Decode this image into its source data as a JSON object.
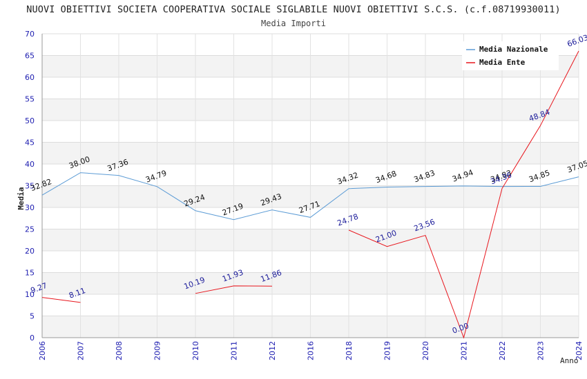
{
  "chart_data": {
    "type": "line",
    "title": "NUOVI OBIETTIVI SOCIETA COOPERATIVA SOCIALE SIGLABILE NUOVI OBIETTIVI S.C.S. (c.f.08719930011)",
    "subtitle": "Media Importi",
    "xlabel": "Anno",
    "ylabel": "Media",
    "ylim": [
      0,
      70
    ],
    "yticks": [
      0,
      5,
      10,
      15,
      20,
      25,
      30,
      35,
      40,
      45,
      50,
      55,
      60,
      65,
      70
    ],
    "categories": [
      "2006",
      "2007",
      "2008",
      "2009",
      "2010",
      "2011",
      "2012",
      "2016",
      "2018",
      "2019",
      "2020",
      "2021",
      "2022",
      "2023",
      "2024"
    ],
    "series": [
      {
        "name": "Media Nazionale",
        "color": "#5b9bd5",
        "values": [
          32.82,
          38.0,
          37.36,
          34.79,
          29.24,
          27.19,
          29.43,
          27.71,
          34.32,
          34.68,
          34.83,
          34.94,
          34.83,
          34.85,
          37.05
        ],
        "labels": [
          "32.82",
          "38.00",
          "37.36",
          "34.79",
          "29.24",
          "27.19",
          "29.43",
          "27.71",
          "34.32",
          "34.68",
          "34.83",
          "34.94",
          "34.83",
          "34.85",
          "37.05"
        ]
      },
      {
        "name": "Media Ente",
        "color": "#e8141b",
        "values": [
          9.27,
          8.11,
          null,
          null,
          10.19,
          11.93,
          11.86,
          null,
          24.78,
          21.0,
          23.56,
          0.0,
          34.36,
          48.84,
          66.03
        ],
        "labels": [
          "9.27",
          "8.11",
          "",
          "",
          "10.19",
          "11.93",
          "11.86",
          "",
          "24.78",
          "21.00",
          "23.56",
          "0.00",
          "34.36",
          "48.84",
          "66.03"
        ]
      }
    ],
    "legend": "top-right",
    "grid": true
  }
}
